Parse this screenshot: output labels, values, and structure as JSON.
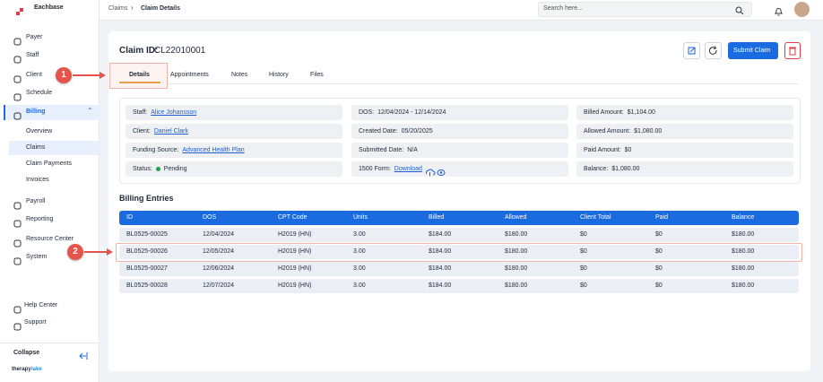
{
  "sidebar": {
    "brand": "Eachbase",
    "nav": [
      "Payer",
      "Staff",
      "Client",
      "Schedule",
      "Billing",
      "Payroll",
      "Reporting",
      "Resource Center",
      "System"
    ],
    "subnav": [
      "Overview",
      "Claims",
      "Claim Payments",
      "Invoices"
    ],
    "footer_nav": [
      "Help Center",
      "Support"
    ],
    "collapse": "Collapse",
    "footer_logo": [
      "therapy",
      "lake"
    ]
  },
  "topbar": {
    "breadcrumb": [
      "Claims",
      "Claim Details"
    ],
    "search_placeholder": "Search here..."
  },
  "header": {
    "claim_id_label": "Claim ID:",
    "claim_id": "CL22010001",
    "submit": "Submit Claim"
  },
  "tabs": [
    "Details",
    "Appointments",
    "Notes",
    "History",
    "Files"
  ],
  "details": [
    [
      {
        "label": "Staff:",
        "value": "Alice Johansson"
      },
      {
        "label": "Client:",
        "value": "Daniel Clark"
      },
      {
        "label": "Funding Source:",
        "value": "Advanced Health Plan"
      },
      {
        "label": "Status:",
        "value": "Pending"
      }
    ],
    [
      {
        "label": "DOS:",
        "value": "12/04/2024 - 12/14/2024"
      },
      {
        "label": "Created Date:",
        "value": "05/20/2025"
      },
      {
        "label": "Submitted Date:",
        "value": "N/A"
      },
      {
        "label": "1500 Form:",
        "value": "Download"
      }
    ],
    [
      {
        "label": "Billed Amount:",
        "value": "$1,104.00"
      },
      {
        "label": "Allowed Amount:",
        "value": "$1,080.00"
      },
      {
        "label": "Paid Amount:",
        "value": "$0"
      },
      {
        "label": "Balance:",
        "value": "$1,080.00"
      }
    ]
  ],
  "billing": {
    "title": "Billing Entries",
    "columns": [
      "ID",
      "DOS",
      "CPT Code",
      "Units",
      "Billed",
      "Allowed",
      "Client Total",
      "Paid",
      "Balance"
    ],
    "rows": [
      [
        "BL0525-00025",
        "12/04/2024",
        "H2019 (HN)",
        "3.00",
        "$184.00",
        "$180.00",
        "$0",
        "$0",
        "$180.00"
      ],
      [
        "BL0525-00026",
        "12/05/2024",
        "H2019 (HN)",
        "3.00",
        "$184.00",
        "$180.00",
        "$0",
        "$0",
        "$180.00"
      ],
      [
        "BL0525-00027",
        "12/06/2024",
        "H2019 (HN)",
        "3.00",
        "$184.00",
        "$180.00",
        "$0",
        "$0",
        "$180.00"
      ],
      [
        "BL0525-00028",
        "12/07/2024",
        "H2019 (HN)",
        "3.00",
        "$184.00",
        "$180.00",
        "$0",
        "$0",
        "$180.00"
      ]
    ]
  },
  "annotations": [
    "1",
    "2"
  ]
}
